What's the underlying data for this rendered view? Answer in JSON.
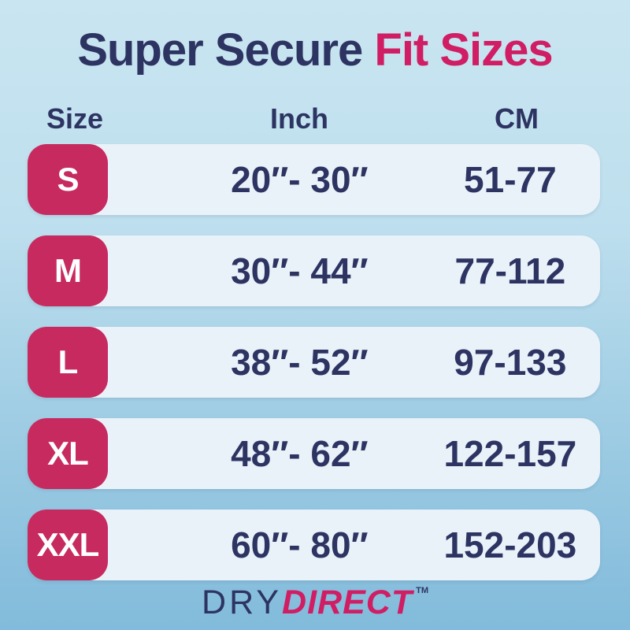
{
  "title": {
    "part1": "Super Secure",
    "part2": "Fit Sizes"
  },
  "table": {
    "headers": {
      "size": "Size",
      "inch": "Inch",
      "cm": "CM"
    },
    "rows": [
      {
        "size": "S",
        "inch": "20″- 30″",
        "cm": "51-77"
      },
      {
        "size": "M",
        "inch": "30″- 44″",
        "cm": "77-112"
      },
      {
        "size": "L",
        "inch": "38″- 52″",
        "cm": "97-133"
      },
      {
        "size": "XL",
        "inch": "48″- 62″",
        "cm": "122-157"
      },
      {
        "size": "XXL",
        "inch": "60″- 80″",
        "cm": "152-203"
      }
    ]
  },
  "brand": {
    "part1": "DRY",
    "part2": "DIRECT",
    "trademark": "TM"
  },
  "colors": {
    "navy_text": "#2d3462",
    "pink_accent": "#d01d63",
    "badge_magenta": "#c72a5f",
    "row_background": "#e9f2f9",
    "background_top": "#c9e5f1",
    "background_bottom": "#82bbdb"
  },
  "chart_data": {
    "type": "table",
    "title": "Super Secure Fit Sizes",
    "columns": [
      "Size",
      "Inch",
      "CM"
    ],
    "rows": [
      [
        "S",
        "20″- 30″",
        "51-77"
      ],
      [
        "M",
        "30″- 44″",
        "77-112"
      ],
      [
        "L",
        "38″- 52″",
        "97-133"
      ],
      [
        "XL",
        "48″- 62″",
        "122-157"
      ],
      [
        "XXL",
        "60″- 80″",
        "152-203"
      ]
    ],
    "inch_ranges": [
      [
        20,
        30
      ],
      [
        30,
        44
      ],
      [
        38,
        52
      ],
      [
        48,
        62
      ],
      [
        60,
        80
      ]
    ],
    "cm_ranges": [
      [
        51,
        77
      ],
      [
        77,
        112
      ],
      [
        97,
        133
      ],
      [
        122,
        157
      ],
      [
        152,
        203
      ]
    ]
  }
}
